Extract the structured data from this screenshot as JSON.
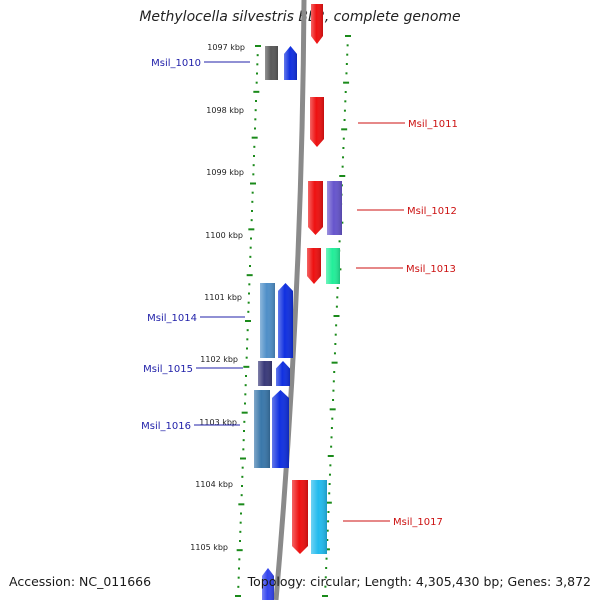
{
  "title": "Methylocella silvestris BL2, complete genome",
  "accession": "Accession: NC_011666",
  "topology": "Topology: circular; Length: 4,305,430 bp; Genes: 3,872",
  "scale": {
    "unit": "kbp",
    "ticks": [
      {
        "label": "1097 kbp"
      },
      {
        "label": "1098 kbp"
      },
      {
        "label": "1099 kbp"
      },
      {
        "label": "1100 kbp"
      },
      {
        "label": "1101 kbp"
      },
      {
        "label": "1102 kbp"
      },
      {
        "label": "1103 kbp"
      },
      {
        "label": "1104 kbp"
      },
      {
        "label": "1105 kbp"
      }
    ]
  },
  "colors": {
    "backbone": "#8a8a8a",
    "tick": "#1a8a1a",
    "forward_label": "#2222aa",
    "reverse_label": "#cc1111"
  },
  "genes": [
    {
      "name": "Msil_1010",
      "strand": "forward",
      "cog_color": "#5a5a5a",
      "arrow_color": "#1030e0"
    },
    {
      "name": "Msil_1011",
      "strand": "reverse",
      "cog_color": null,
      "arrow_color": "#ee1111"
    },
    {
      "name": "Msil_1012",
      "strand": "reverse",
      "cog_color": "#6655cc",
      "arrow_color": "#ee1111"
    },
    {
      "name": "Msil_1013",
      "strand": "reverse",
      "cog_color": "#22ee99",
      "arrow_color": "#ee1111"
    },
    {
      "name": "Msil_1014",
      "strand": "forward",
      "cog_color": "#4f8fc8",
      "arrow_color": "#1030e0"
    },
    {
      "name": "Msil_1015",
      "strand": "forward",
      "cog_color": "#3a3a7a",
      "arrow_color": "#1030e0"
    },
    {
      "name": "Msil_1016",
      "strand": "forward",
      "cog_color": "#3a77aa",
      "arrow_color": "#1030e0"
    },
    {
      "name": "Msil_1017",
      "strand": "reverse",
      "cog_color": "#22bbee",
      "arrow_color": "#ee1111"
    }
  ]
}
